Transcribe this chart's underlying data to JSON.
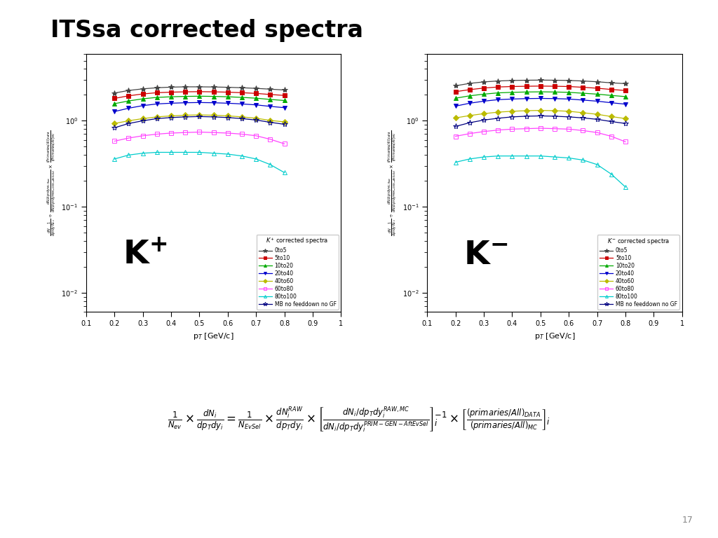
{
  "title": "ITSsa corrected spectra",
  "title_fontsize": 24,
  "bg_color": "#ffffff",
  "pt_values": [
    0.2,
    0.25,
    0.3,
    0.35,
    0.4,
    0.45,
    0.5,
    0.55,
    0.6,
    0.65,
    0.7,
    0.75,
    0.8
  ],
  "series": [
    {
      "label": "0to5",
      "color": "#444444",
      "marker": "*",
      "markersize": 6,
      "filled": true,
      "kplus": [
        2.1,
        2.25,
        2.35,
        2.42,
        2.46,
        2.48,
        2.48,
        2.47,
        2.45,
        2.42,
        2.38,
        2.33,
        2.28
      ],
      "kminus": [
        2.55,
        2.72,
        2.83,
        2.9,
        2.94,
        2.96,
        2.97,
        2.96,
        2.94,
        2.9,
        2.84,
        2.76,
        2.7
      ]
    },
    {
      "label": "5to10",
      "color": "#cc0000",
      "marker": "s",
      "markersize": 4,
      "filled": true,
      "kplus": [
        1.82,
        1.95,
        2.05,
        2.12,
        2.15,
        2.17,
        2.18,
        2.17,
        2.15,
        2.12,
        2.08,
        2.02,
        1.97
      ],
      "kminus": [
        2.18,
        2.3,
        2.4,
        2.47,
        2.5,
        2.52,
        2.53,
        2.52,
        2.5,
        2.45,
        2.39,
        2.31,
        2.25
      ]
    },
    {
      "label": "10to20",
      "color": "#00aa00",
      "marker": "^",
      "markersize": 4,
      "filled": true,
      "kplus": [
        1.58,
        1.7,
        1.8,
        1.87,
        1.9,
        1.92,
        1.93,
        1.92,
        1.9,
        1.87,
        1.83,
        1.77,
        1.72
      ],
      "kminus": [
        1.83,
        1.95,
        2.04,
        2.11,
        2.14,
        2.16,
        2.17,
        2.16,
        2.14,
        2.09,
        2.04,
        1.97,
        1.91
      ]
    },
    {
      "label": "20to40",
      "color": "#0000cc",
      "marker": "v",
      "markersize": 4,
      "filled": true,
      "kplus": [
        1.28,
        1.4,
        1.5,
        1.57,
        1.6,
        1.62,
        1.63,
        1.62,
        1.6,
        1.57,
        1.53,
        1.47,
        1.42
      ],
      "kminus": [
        1.48,
        1.6,
        1.69,
        1.76,
        1.79,
        1.81,
        1.82,
        1.81,
        1.79,
        1.74,
        1.69,
        1.62,
        1.56
      ]
    },
    {
      "label": "40to60",
      "color": "#bbbb00",
      "marker": "D",
      "markersize": 4,
      "filled": true,
      "kplus": [
        0.93,
        1.0,
        1.06,
        1.11,
        1.14,
        1.16,
        1.17,
        1.16,
        1.14,
        1.11,
        1.07,
        1.01,
        0.97
      ],
      "kminus": [
        1.08,
        1.15,
        1.21,
        1.26,
        1.29,
        1.31,
        1.32,
        1.31,
        1.29,
        1.24,
        1.19,
        1.12,
        1.06
      ]
    },
    {
      "label": "60to80",
      "color": "#ff44ff",
      "marker": "s",
      "markersize": 4,
      "filled": false,
      "kplus": [
        0.58,
        0.63,
        0.67,
        0.7,
        0.72,
        0.73,
        0.74,
        0.73,
        0.72,
        0.7,
        0.67,
        0.61,
        0.54
      ],
      "kminus": [
        0.66,
        0.71,
        0.75,
        0.78,
        0.8,
        0.81,
        0.82,
        0.81,
        0.8,
        0.77,
        0.73,
        0.66,
        0.57
      ]
    },
    {
      "label": "80to100",
      "color": "#00cccc",
      "marker": "^",
      "markersize": 4,
      "filled": false,
      "kplus": [
        0.36,
        0.4,
        0.42,
        0.43,
        0.43,
        0.43,
        0.43,
        0.42,
        0.41,
        0.39,
        0.36,
        0.31,
        0.25
      ],
      "kminus": [
        0.33,
        0.36,
        0.38,
        0.39,
        0.39,
        0.39,
        0.39,
        0.38,
        0.37,
        0.35,
        0.31,
        0.24,
        0.17
      ]
    },
    {
      "label": "MB no feeddown no GF",
      "color": "#000080",
      "marker": "*",
      "markersize": 6,
      "filled": false,
      "kplus": [
        0.83,
        0.93,
        1.0,
        1.06,
        1.09,
        1.11,
        1.12,
        1.11,
        1.09,
        1.06,
        1.02,
        0.96,
        0.91
      ],
      "kminus": [
        0.86,
        0.95,
        1.02,
        1.07,
        1.11,
        1.13,
        1.14,
        1.13,
        1.11,
        1.08,
        1.04,
        0.98,
        0.93
      ]
    }
  ],
  "ylim": [
    0.006,
    6.0
  ],
  "xlim": [
    0.1,
    1.0
  ],
  "xlabel": "p$_{T}$ [GeV/c]",
  "page_number": "17"
}
